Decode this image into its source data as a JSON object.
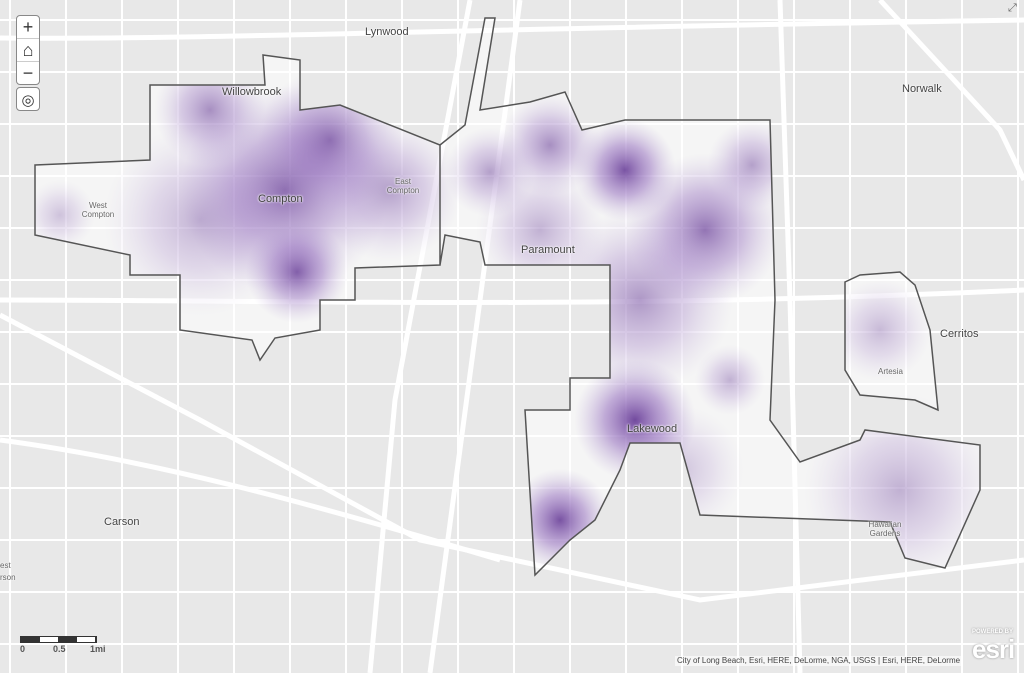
{
  "map": {
    "type": "heatmap",
    "colors": {
      "background": "#e8e8e8",
      "roads": "#ffffff",
      "boundary": "#555555",
      "heat": "#6a3d9a"
    },
    "controls": {
      "zoom_in": "+",
      "home_icon": "home-icon",
      "zoom_out": "−",
      "locate_icon": "locate-icon"
    },
    "places": [
      {
        "name": "Lynwood"
      },
      {
        "name": "Willowbrook"
      },
      {
        "name": "Norwalk"
      },
      {
        "name": "West Compton"
      },
      {
        "name": "Compton"
      },
      {
        "name": "East Compton"
      },
      {
        "name": "Paramount"
      },
      {
        "name": "Cerritos"
      },
      {
        "name": "Artesia"
      },
      {
        "name": "Lakewood"
      },
      {
        "name": "Carson"
      },
      {
        "name": "Hawaiian Gardens"
      },
      {
        "name": "est"
      },
      {
        "name": "rson"
      }
    ],
    "scale": {
      "labels": [
        "0",
        "0.5",
        "1mi"
      ]
    },
    "attribution": "City of Long Beach, Esri, HERE, DeLorme, NGA, USGS | Esri, HERE, DeLorme",
    "logo": {
      "top": "POWERED BY",
      "main": "esri"
    }
  }
}
